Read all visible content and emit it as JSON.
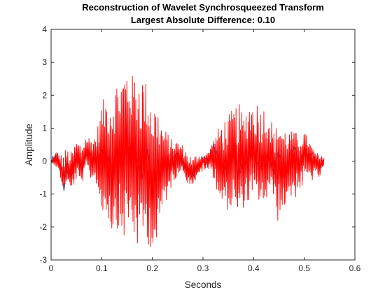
{
  "chart_data": {
    "type": "line",
    "title": "Reconstruction of Wavelet Synchrosqueezed Transform",
    "subtitle": "Largest Absolute Difference: 0.10",
    "xlabel": "Seconds",
    "ylabel": "Amplitude",
    "xlim": [
      0,
      0.6
    ],
    "ylim": [
      -3,
      4
    ],
    "xticks": [
      0,
      0.1,
      0.2,
      0.3,
      0.4,
      0.5,
      0.6
    ],
    "xtick_labels": [
      "0",
      "0.1",
      "0.2",
      "0.3",
      "0.4",
      "0.5",
      "0.6"
    ],
    "yticks": [
      -3,
      -2,
      -1,
      0,
      1,
      2,
      3,
      4
    ],
    "ytick_labels": [
      "-3",
      "-2",
      "-1",
      "0",
      "1",
      "2",
      "3",
      "4"
    ],
    "grid": false,
    "legend": "none",
    "series": [
      {
        "color": "#0072BD",
        "x": [
          0.0,
          0.01,
          0.02,
          0.025,
          0.03,
          0.04,
          0.05,
          0.06,
          0.07,
          0.08,
          0.09,
          0.1,
          0.11,
          0.12,
          0.13,
          0.14,
          0.15,
          0.16,
          0.17,
          0.18,
          0.19,
          0.2,
          0.21,
          0.22,
          0.23,
          0.24,
          0.25,
          0.26,
          0.27,
          0.28,
          0.29,
          0.3,
          0.31,
          0.32,
          0.33,
          0.34,
          0.35,
          0.36,
          0.37,
          0.38,
          0.39,
          0.4,
          0.41,
          0.42,
          0.43,
          0.44,
          0.45,
          0.46,
          0.47,
          0.48,
          0.49,
          0.5,
          0.51,
          0.52,
          0.53,
          0.54
        ],
        "y": [
          0.0,
          0.1,
          -0.2,
          -0.9,
          -0.3,
          -0.5,
          0.2,
          -0.3,
          0.3,
          0.1,
          0.0,
          0.3,
          0.2,
          -0.4,
          0.3,
          0.1,
          0.3,
          0.5,
          0.0,
          -0.5,
          0.3,
          -0.7,
          -0.4,
          0.1,
          -0.2,
          0.0,
          0.2,
          -0.1,
          -0.3,
          -0.5,
          -0.2,
          0.1,
          0.0,
          0.4,
          0.1,
          -0.3,
          -0.1,
          0.2,
          -0.4,
          -0.1,
          0.1,
          0.3,
          -0.3,
          0.0,
          0.2,
          -0.4,
          0.3,
          -0.5,
          0.1,
          0.4,
          -0.1,
          0.3,
          0.2,
          0.1,
          -0.2,
          0.1
        ]
      },
      {
        "color": "#FF0000",
        "x": [
          0.0,
          0.01,
          0.02,
          0.025,
          0.03,
          0.04,
          0.05,
          0.06,
          0.07,
          0.08,
          0.09,
          0.1,
          0.11,
          0.12,
          0.13,
          0.14,
          0.15,
          0.16,
          0.17,
          0.18,
          0.19,
          0.2,
          0.21,
          0.22,
          0.23,
          0.24,
          0.25,
          0.26,
          0.27,
          0.28,
          0.29,
          0.3,
          0.31,
          0.32,
          0.33,
          0.34,
          0.35,
          0.36,
          0.37,
          0.38,
          0.39,
          0.4,
          0.41,
          0.42,
          0.43,
          0.44,
          0.45,
          0.46,
          0.47,
          0.48,
          0.49,
          0.5,
          0.51,
          0.52,
          0.53,
          0.54
        ],
        "y": [
          0.0,
          0.1,
          -0.2,
          -0.9,
          -0.3,
          -0.5,
          0.2,
          -0.3,
          0.3,
          0.1,
          0.0,
          0.3,
          0.2,
          -0.4,
          0.3,
          0.1,
          0.3,
          0.5,
          0.0,
          -0.5,
          0.3,
          -0.7,
          -0.4,
          0.1,
          -0.2,
          0.0,
          0.2,
          -0.1,
          -0.3,
          -0.5,
          -0.2,
          0.1,
          0.0,
          0.4,
          0.1,
          -0.3,
          -0.1,
          0.2,
          -0.4,
          -0.1,
          0.1,
          0.3,
          -0.3,
          0.0,
          0.2,
          -0.4,
          0.3,
          -0.5,
          0.1,
          0.4,
          -0.1,
          0.3,
          0.2,
          0.1,
          -0.2,
          0.1
        ],
        "envelope_max": [
          0.0,
          0.3,
          0.2,
          0.3,
          0.4,
          0.3,
          0.6,
          0.6,
          0.8,
          0.7,
          0.9,
          1.8,
          2.0,
          2.2,
          2.5,
          2.7,
          3.0,
          2.6,
          2.8,
          2.8,
          2.3,
          2.0,
          1.7,
          1.0,
          0.9,
          0.6,
          0.6,
          0.5,
          0.3,
          0.1,
          0.3,
          0.1,
          0.3,
          0.6,
          1.0,
          1.3,
          1.4,
          1.6,
          1.8,
          1.4,
          1.9,
          1.8,
          1.9,
          1.7,
          1.6,
          1.0,
          1.1,
          1.1,
          0.9,
          0.9,
          0.8,
          0.9,
          0.6,
          0.3,
          0.2,
          0.1
        ],
        "envelope_min": [
          0.0,
          -0.2,
          -0.6,
          -0.9,
          -0.6,
          -0.9,
          -0.6,
          -0.7,
          -0.4,
          -0.6,
          -0.7,
          -1.8,
          -1.6,
          -2.2,
          -2.0,
          -2.5,
          -2.2,
          -2.3,
          -2.7,
          -2.3,
          -2.5,
          -2.7,
          -2.8,
          -1.6,
          -1.1,
          -0.7,
          -0.4,
          -0.3,
          -0.7,
          -0.7,
          -0.5,
          -0.3,
          -0.3,
          -0.5,
          -1.1,
          -1.4,
          -1.5,
          -1.5,
          -1.7,
          -1.4,
          -1.3,
          -1.3,
          -1.2,
          -1.4,
          -1.2,
          -1.0,
          -2.1,
          -1.4,
          -1.2,
          -1.2,
          -0.9,
          -0.8,
          -0.6,
          -0.6,
          -0.5,
          -0.2
        ]
      }
    ]
  }
}
